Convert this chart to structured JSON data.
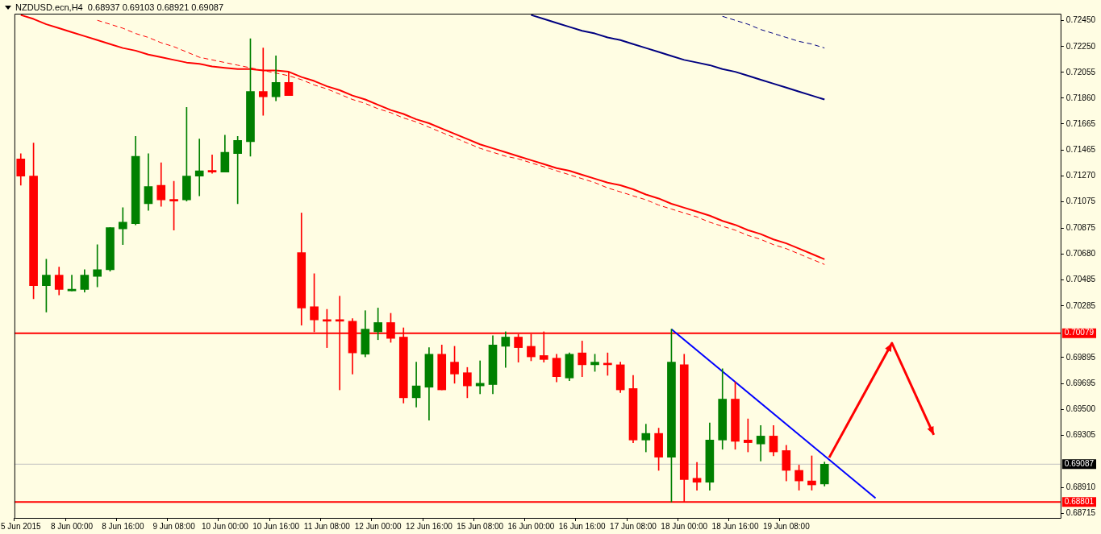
{
  "chart_data": {
    "type": "candlestick",
    "title": "NZDUSD.ecn,H4  0.68937 0.69103 0.68921 0.69087",
    "categories": [
      "5 Jun 2015",
      null,
      null,
      null,
      "8 Jun 00:00",
      null,
      null,
      null,
      "8 Jun 16:00",
      null,
      null,
      null,
      "9 Jun 08:00",
      null,
      null,
      null,
      "10 Jun 00:00",
      null,
      null,
      null,
      "10 Jun 16:00",
      null,
      null,
      null,
      "11 Jun 08:00",
      null,
      null,
      null,
      "12 Jun 00:00",
      null,
      null,
      null,
      "12 Jun 16:00",
      null,
      null,
      null,
      "15 Jun 08:00",
      null,
      null,
      null,
      "16 Jun 00:00",
      null,
      null,
      null,
      "16 Jun 16:00",
      null,
      null,
      null,
      "17 Jun 08:00",
      null,
      null,
      null,
      "18 Jun 00:00",
      null,
      null,
      null,
      "18 Jun 16:00",
      null,
      null,
      null,
      "19 Jun 08:00",
      null,
      null,
      null,
      null,
      null,
      null,
      null,
      null,
      null,
      null,
      null,
      null,
      null,
      null,
      null,
      null,
      null,
      null,
      null,
      null,
      null
    ],
    "ohlc": [
      [
        0.714,
        0.7144,
        0.712,
        0.7127
      ],
      [
        0.7127,
        0.7152,
        0.7034,
        0.7044
      ],
      [
        0.7044,
        0.7064,
        0.7024,
        0.7052
      ],
      [
        0.7052,
        0.7058,
        0.7037,
        0.7041
      ],
      [
        0.704,
        0.7052,
        0.704,
        0.7041
      ],
      [
        0.7041,
        0.7056,
        0.7039,
        0.7052
      ],
      [
        0.7051,
        0.7075,
        0.7043,
        0.7056
      ],
      [
        0.7056,
        0.7088,
        0.7055,
        0.7088
      ],
      [
        0.7087,
        0.7103,
        0.7075,
        0.7092
      ],
      [
        0.7091,
        0.7157,
        0.709,
        0.7142
      ],
      [
        0.7106,
        0.7144,
        0.7101,
        0.7119
      ],
      [
        0.712,
        0.7137,
        0.7104,
        0.7109
      ],
      [
        0.7109,
        0.7123,
        0.7086,
        0.7108
      ],
      [
        0.7109,
        0.7179,
        0.7108,
        0.7127
      ],
      [
        0.7127,
        0.7155,
        0.7112,
        0.7131
      ],
      [
        0.7131,
        0.7143,
        0.7129,
        0.713
      ],
      [
        0.713,
        0.7158,
        0.713,
        0.7145
      ],
      [
        0.7144,
        0.7157,
        0.7106,
        0.7154
      ],
      [
        0.7153,
        0.7231,
        0.7142,
        0.7191
      ],
      [
        0.7191,
        0.7224,
        0.7173,
        0.7187
      ],
      [
        0.7187,
        0.7218,
        0.7184,
        0.7198
      ],
      [
        0.7198,
        0.7206,
        0.7188,
        0.7188
      ],
      [
        0.7069,
        0.7099,
        0.7014,
        0.7027
      ],
      [
        0.7028,
        0.7053,
        0.7009,
        0.7018
      ],
      [
        0.7018,
        0.7026,
        0.6997,
        0.7017
      ],
      [
        0.7018,
        0.7036,
        0.6965,
        0.7017
      ],
      [
        0.7017,
        0.7019,
        0.6977,
        0.6993
      ],
      [
        0.6992,
        0.7025,
        0.699,
        0.7011
      ],
      [
        0.7009,
        0.7027,
        0.7003,
        0.7016
      ],
      [
        0.7016,
        0.7023,
        0.7001,
        0.7004
      ],
      [
        0.7005,
        0.7012,
        0.6955,
        0.6959
      ],
      [
        0.6959,
        0.6986,
        0.6952,
        0.6968
      ],
      [
        0.6967,
        0.6997,
        0.6942,
        0.6992
      ],
      [
        0.6992,
        0.6999,
        0.6965,
        0.6965
      ],
      [
        0.6986,
        0.6998,
        0.697,
        0.6977
      ],
      [
        0.6978,
        0.6982,
        0.6959,
        0.6968
      ],
      [
        0.6968,
        0.6987,
        0.6962,
        0.697
      ],
      [
        0.6969,
        0.7006,
        0.6962,
        0.6999
      ],
      [
        0.6998,
        0.7009,
        0.6982,
        0.7005
      ],
      [
        0.7005,
        0.7007,
        0.6986,
        0.6997
      ],
      [
        0.6998,
        0.7007,
        0.6987,
        0.699
      ],
      [
        0.6991,
        0.7009,
        0.6986,
        0.6988
      ],
      [
        0.6989,
        0.6992,
        0.6971,
        0.6975
      ],
      [
        0.6974,
        0.6993,
        0.6972,
        0.6992
      ],
      [
        0.6993,
        0.7002,
        0.6975,
        0.6984
      ],
      [
        0.6984,
        0.6992,
        0.6979,
        0.6986
      ],
      [
        0.6985,
        0.6993,
        0.6976,
        0.6984
      ],
      [
        0.6984,
        0.6986,
        0.6963,
        0.6965
      ],
      [
        0.6966,
        0.6976,
        0.6925,
        0.6927
      ],
      [
        0.6927,
        0.6939,
        0.6918,
        0.6932
      ],
      [
        0.6932,
        0.6936,
        0.6904,
        0.6914
      ],
      [
        0.6914,
        0.7011,
        0.688,
        0.6986
      ],
      [
        0.6984,
        0.6992,
        0.688,
        0.6897
      ],
      [
        0.6898,
        0.691,
        0.6889,
        0.6895
      ],
      [
        0.6895,
        0.694,
        0.6889,
        0.6927
      ],
      [
        0.6927,
        0.6981,
        0.692,
        0.6958
      ],
      [
        0.6958,
        0.6971,
        0.692,
        0.6926
      ],
      [
        0.6927,
        0.6943,
        0.6918,
        0.6925
      ],
      [
        0.6924,
        0.6938,
        0.6911,
        0.693
      ],
      [
        0.693,
        0.6938,
        0.6915,
        0.6918
      ],
      [
        0.6919,
        0.6923,
        0.6896,
        0.6904
      ],
      [
        0.6904,
        0.6908,
        0.6889,
        0.6896
      ],
      [
        0.6896,
        0.6915,
        0.6889,
        0.6893
      ],
      [
        0.68937,
        0.69103,
        0.68921,
        0.69087
      ],
      null,
      null,
      null,
      null,
      null,
      null,
      null,
      null,
      null,
      null,
      null,
      null,
      null,
      null,
      null,
      null,
      null,
      null
    ],
    "colors": [
      "#ff0000",
      "#ff0000",
      "#008000",
      "#ff0000",
      "#008000",
      "#008000",
      "#008000",
      "#008000",
      "#008000",
      "#008000",
      "#008000",
      "#ff0000",
      "#ff0000",
      "#008000",
      "#008000",
      "#ff0000",
      "#008000",
      "#008000",
      "#008000",
      "#ff0000",
      "#008000",
      "#ff0000",
      "#ff0000",
      "#ff0000",
      "#ff0000",
      "#ff0000",
      "#ff0000",
      "#008000",
      "#008000",
      "#ff0000",
      "#ff0000",
      "#008000",
      "#008000",
      "#ff0000",
      "#ff0000",
      "#ff0000",
      "#008000",
      "#008000",
      "#008000",
      "#ff0000",
      "#ff0000",
      "#ff0000",
      "#ff0000",
      "#008000",
      "#ff0000",
      "#008000",
      "#ff0000",
      "#ff0000",
      "#ff0000",
      "#008000",
      "#ff0000",
      "#008000",
      "#ff0000",
      "#ff0000",
      "#008000",
      "#008000",
      "#ff0000",
      "#ff0000",
      "#008000",
      "#ff0000",
      "#ff0000",
      "#ff0000",
      "#ff0000",
      "#008000",
      null,
      null,
      null,
      null,
      null,
      null,
      null,
      null,
      null,
      null,
      null,
      null,
      null,
      null,
      null,
      null,
      null,
      null
    ],
    "series": [
      {
        "type": "line",
        "color": "#ff0000",
        "line_style": "solid",
        "values": [
          0.7249,
          0.7246,
          0.7242,
          0.7239,
          0.7236,
          0.7233,
          0.723,
          0.7227,
          0.7224,
          0.7222,
          0.7219,
          0.7217,
          0.7215,
          0.7213,
          0.7212,
          0.721,
          0.7209,
          0.7208,
          0.7208,
          0.7207,
          0.7207,
          0.7206,
          0.7202,
          0.7199,
          0.7195,
          0.7192,
          0.7188,
          0.7185,
          0.7181,
          0.7177,
          0.7174,
          0.717,
          0.7167,
          0.7163,
          0.7159,
          0.7155,
          0.7151,
          0.7148,
          0.7145,
          0.7142,
          0.7139,
          0.7136,
          0.7133,
          0.7131,
          0.7128,
          0.7125,
          0.7122,
          0.712,
          0.7117,
          0.7113,
          0.711,
          0.7106,
          0.7103,
          0.71,
          0.7097,
          0.7093,
          0.709,
          0.7086,
          0.7083,
          0.7079,
          0.7076,
          0.7072,
          0.7068,
          0.7064,
          null,
          null,
          null,
          null,
          null,
          null,
          null,
          null,
          null,
          null,
          null,
          null,
          null,
          null,
          null,
          null,
          null,
          null
        ]
      },
      {
        "type": "line",
        "color": "#ff0000",
        "line_style": "dashed",
        "values": [
          null,
          null,
          null,
          null,
          null,
          null,
          0.7245,
          0.7242,
          0.7239,
          0.7235,
          0.7232,
          0.7228,
          0.7225,
          0.7221,
          0.7217,
          0.7215,
          0.7213,
          0.7211,
          0.7209,
          0.7207,
          0.7205,
          0.7203,
          0.72,
          0.7196,
          0.7193,
          0.7189,
          0.7185,
          0.7182,
          0.7178,
          0.7175,
          0.7171,
          0.7168,
          0.7164,
          0.716,
          0.7156,
          0.7152,
          0.7148,
          0.7145,
          0.7142,
          0.714,
          0.7137,
          0.7134,
          0.7131,
          0.7128,
          0.7125,
          0.7122,
          0.7118,
          0.7115,
          0.7112,
          0.7109,
          0.7105,
          0.7102,
          0.7099,
          0.7096,
          0.7092,
          0.7089,
          0.7086,
          0.7082,
          0.7079,
          0.7075,
          0.7072,
          0.7068,
          0.7064,
          0.706,
          null,
          null,
          null,
          null,
          null,
          null,
          null,
          null,
          null,
          null,
          null,
          null,
          null,
          null,
          null,
          null,
          null,
          null
        ]
      },
      {
        "type": "line",
        "color": "#000080",
        "line_style": "solid",
        "values": [
          null,
          null,
          null,
          null,
          null,
          null,
          null,
          null,
          null,
          null,
          null,
          null,
          null,
          null,
          null,
          null,
          null,
          null,
          null,
          null,
          null,
          null,
          null,
          null,
          null,
          null,
          null,
          null,
          null,
          null,
          null,
          null,
          null,
          null,
          null,
          null,
          null,
          null,
          null,
          null,
          0.7249,
          0.7246,
          0.7243,
          0.724,
          0.7237,
          0.7235,
          0.7232,
          0.723,
          0.7227,
          0.7224,
          0.7221,
          0.7218,
          0.7215,
          0.7213,
          0.7211,
          0.7208,
          0.7206,
          0.7203,
          0.72,
          0.7197,
          0.7194,
          0.7191,
          0.7188,
          0.7185,
          null,
          null,
          null,
          null,
          null,
          null,
          null,
          null,
          null,
          null,
          null,
          null,
          null,
          null,
          null,
          null,
          null,
          null
        ]
      },
      {
        "type": "line",
        "color": "#000080",
        "line_style": "dashed",
        "values": [
          null,
          null,
          null,
          null,
          null,
          null,
          null,
          null,
          null,
          null,
          null,
          null,
          null,
          null,
          null,
          null,
          null,
          null,
          null,
          null,
          null,
          null,
          null,
          null,
          null,
          null,
          null,
          null,
          null,
          null,
          null,
          null,
          null,
          null,
          null,
          null,
          null,
          null,
          null,
          null,
          null,
          null,
          null,
          null,
          null,
          null,
          null,
          null,
          null,
          null,
          null,
          null,
          null,
          null,
          null,
          0.7248,
          0.7245,
          0.7242,
          0.7238,
          0.7235,
          0.7232,
          0.7229,
          0.7227,
          0.7224,
          null,
          null,
          null,
          null,
          null,
          null,
          null,
          null,
          null,
          null,
          null,
          null,
          null,
          null,
          null,
          null,
          null,
          null
        ]
      },
      {
        "type": "line",
        "color": "#0000ff",
        "line_style": "solid",
        "values": [
          null,
          null,
          null,
          null,
          null,
          null,
          null,
          null,
          null,
          null,
          null,
          null,
          null,
          null,
          null,
          null,
          null,
          null,
          null,
          null,
          null,
          null,
          null,
          null,
          null,
          null,
          null,
          null,
          null,
          null,
          null,
          null,
          null,
          null,
          null,
          null,
          null,
          null,
          null,
          null,
          null,
          null,
          null,
          null,
          null,
          null,
          null,
          null,
          null,
          null,
          null,
          0.7011,
          null,
          null,
          null,
          null,
          null,
          null,
          null,
          null,
          null,
          null,
          null,
          null,
          null,
          null,
          null,
          0.6883,
          null,
          null,
          null,
          null,
          null,
          null,
          null,
          null,
          null,
          null,
          null,
          null,
          null,
          null
        ]
      }
    ],
    "ylim": [
      0.6868,
      0.725
    ],
    "yticks": [
      {
        "value": 0.7245,
        "label": "0.72450"
      },
      {
        "value": 0.7225,
        "label": "0.72250"
      },
      {
        "value": 0.72055,
        "label": "0.72055"
      },
      {
        "value": 0.7186,
        "label": "0.71860"
      },
      {
        "value": 0.71665,
        "label": "0.71665"
      },
      {
        "value": 0.71465,
        "label": "0.71465"
      },
      {
        "value": 0.7127,
        "label": "0.71270"
      },
      {
        "value": 0.71075,
        "label": "0.71075"
      },
      {
        "value": 0.70875,
        "label": "0.70875"
      },
      {
        "value": 0.7068,
        "label": "0.70680"
      },
      {
        "value": 0.70485,
        "label": "0.70485"
      },
      {
        "value": 0.70285,
        "label": "0.70285"
      },
      {
        "value": 0.69895,
        "label": "0.69895"
      },
      {
        "value": 0.69695,
        "label": "0.69695"
      },
      {
        "value": 0.695,
        "label": "0.69500"
      },
      {
        "value": 0.69305,
        "label": "0.69305"
      },
      {
        "value": 0.6891,
        "label": "0.68910"
      },
      {
        "value": 0.68715,
        "label": "0.68715"
      }
    ],
    "ref_lines": [
      {
        "axis": "y",
        "value": 0.70079,
        "label": "0.70079",
        "color": "#ff0000"
      },
      {
        "axis": "y",
        "value": 0.69087,
        "label": "0.69087",
        "color": "#c0c0c0"
      },
      {
        "axis": "y",
        "value": 0.68801,
        "label": "0.68801",
        "color": "#ff0000"
      }
    ],
    "marker": "none",
    "legend": false
  }
}
